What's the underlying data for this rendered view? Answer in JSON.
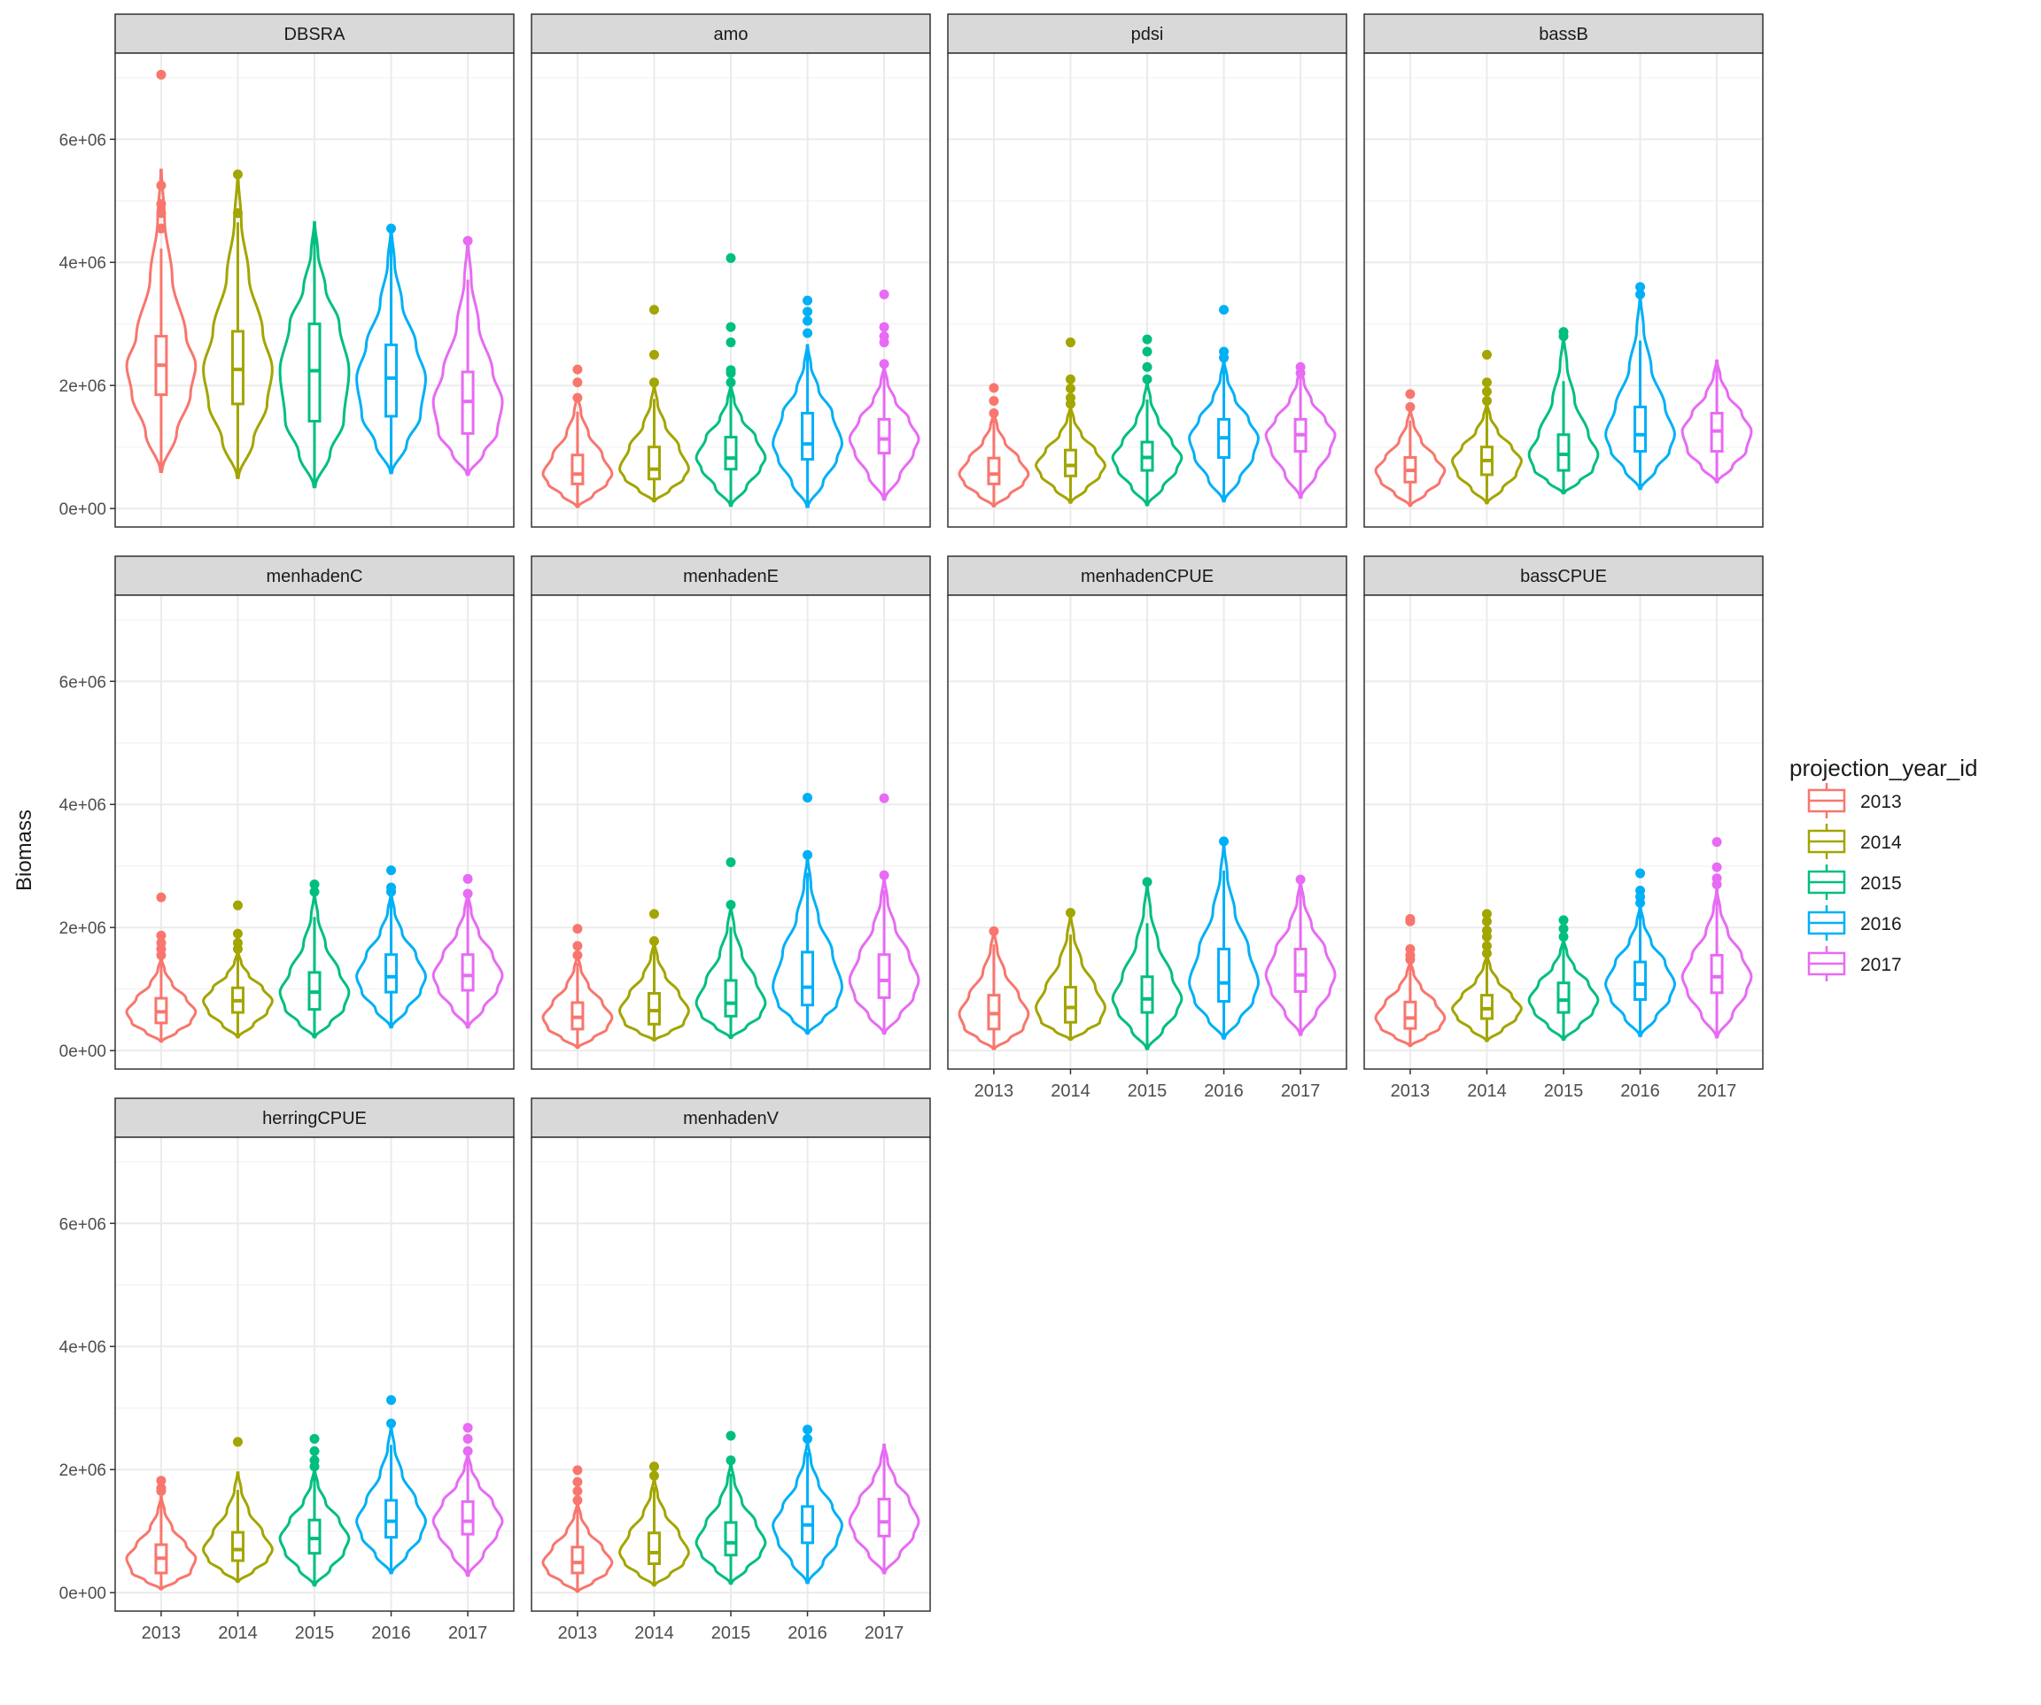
{
  "chart_data": {
    "type": "violin",
    "ylabel": "Biomass",
    "legend": {
      "title": "projection_year_id",
      "position": "right",
      "items": [
        "2013",
        "2014",
        "2015",
        "2016",
        "2017"
      ]
    },
    "categories": [
      "2013",
      "2014",
      "2015",
      "2016",
      "2017"
    ],
    "colors": {
      "2013": "#F8766D",
      "2014": "#A3A500",
      "2015": "#00BF7D",
      "2016": "#00B0F6",
      "2017": "#E76BF3"
    },
    "ylim": [
      -300000,
      7400000
    ],
    "yticks": [
      0,
      2000000,
      4000000,
      6000000
    ],
    "yticklabels": [
      "0e+00",
      "2e+06",
      "4e+06",
      "6e+06"
    ],
    "grid": true,
    "panels": [
      {
        "title": "DBSRA",
        "series": [
          {
            "name": "2013",
            "min": 600000,
            "q1": 1850000,
            "median": 2330000,
            "q3": 2800000,
            "max": 7050000,
            "violin_max": 5500000,
            "outliers": [
              4550000,
              4800000,
              4950000,
              5250000,
              7050000
            ]
          },
          {
            "name": "2014",
            "min": 500000,
            "q1": 1700000,
            "median": 2260000,
            "q3": 2880000,
            "max": 5430000,
            "violin_max": 5430000,
            "outliers": [
              4800000,
              5430000
            ]
          },
          {
            "name": "2015",
            "min": 350000,
            "q1": 1420000,
            "median": 2240000,
            "q3": 3000000,
            "max": 4650000,
            "violin_max": 4650000,
            "outliers": []
          },
          {
            "name": "2016",
            "min": 580000,
            "q1": 1500000,
            "median": 2120000,
            "q3": 2660000,
            "max": 4550000,
            "violin_max": 4550000,
            "outliers": [
              4550000
            ]
          },
          {
            "name": "2017",
            "min": 550000,
            "q1": 1220000,
            "median": 1740000,
            "q3": 2220000,
            "max": 4350000,
            "violin_max": 4350000,
            "outliers": [
              4350000
            ]
          }
        ]
      },
      {
        "title": "amo",
        "series": [
          {
            "name": "2013",
            "min": 30000,
            "q1": 400000,
            "median": 560000,
            "q3": 870000,
            "max": 2260000,
            "violin_max": 1850000,
            "outliers": [
              1800000,
              2050000,
              2260000
            ]
          },
          {
            "name": "2014",
            "min": 120000,
            "q1": 480000,
            "median": 640000,
            "q3": 1000000,
            "max": 3230000,
            "violin_max": 2000000,
            "outliers": [
              2050000,
              2500000,
              3230000
            ]
          },
          {
            "name": "2015",
            "min": 50000,
            "q1": 640000,
            "median": 820000,
            "q3": 1160000,
            "max": 4070000,
            "violin_max": 2000000,
            "outliers": [
              2050000,
              2200000,
              2250000,
              2700000,
              2950000,
              4070000
            ]
          },
          {
            "name": "2016",
            "min": 30000,
            "q1": 800000,
            "median": 1050000,
            "q3": 1550000,
            "max": 3380000,
            "violin_max": 2650000,
            "outliers": [
              2850000,
              3050000,
              3200000,
              3380000
            ]
          },
          {
            "name": "2017",
            "min": 150000,
            "q1": 900000,
            "median": 1130000,
            "q3": 1450000,
            "max": 3480000,
            "violin_max": 2300000,
            "outliers": [
              2350000,
              2700000,
              2800000,
              2950000,
              3480000
            ]
          }
        ]
      },
      {
        "title": "pdsi",
        "series": [
          {
            "name": "2013",
            "min": 40000,
            "q1": 400000,
            "median": 560000,
            "q3": 820000,
            "max": 1960000,
            "violin_max": 1550000,
            "outliers": [
              1550000,
              1750000,
              1960000
            ]
          },
          {
            "name": "2014",
            "min": 100000,
            "q1": 530000,
            "median": 700000,
            "q3": 950000,
            "max": 2700000,
            "violin_max": 1650000,
            "outliers": [
              1700000,
              1800000,
              1950000,
              2100000,
              2700000
            ]
          },
          {
            "name": "2015",
            "min": 60000,
            "q1": 620000,
            "median": 830000,
            "q3": 1080000,
            "max": 2750000,
            "violin_max": 2050000,
            "outliers": [
              2100000,
              2300000,
              2550000,
              2750000
            ]
          },
          {
            "name": "2016",
            "min": 120000,
            "q1": 830000,
            "median": 1150000,
            "q3": 1450000,
            "max": 3230000,
            "violin_max": 2400000,
            "outliers": [
              2450000,
              2550000,
              3230000
            ]
          },
          {
            "name": "2017",
            "min": 180000,
            "q1": 930000,
            "median": 1200000,
            "q3": 1450000,
            "max": 2300000,
            "violin_max": 2300000,
            "outliers": [
              2200000,
              2300000
            ]
          }
        ]
      },
      {
        "title": "bassB",
        "series": [
          {
            "name": "2013",
            "min": 50000,
            "q1": 430000,
            "median": 620000,
            "q3": 830000,
            "max": 1860000,
            "violin_max": 1600000,
            "outliers": [
              1650000,
              1860000
            ]
          },
          {
            "name": "2014",
            "min": 90000,
            "q1": 550000,
            "median": 780000,
            "q3": 1000000,
            "max": 2500000,
            "violin_max": 1700000,
            "outliers": [
              1750000,
              1900000,
              2050000,
              2500000
            ]
          },
          {
            "name": "2015",
            "min": 250000,
            "q1": 620000,
            "median": 880000,
            "q3": 1200000,
            "max": 2870000,
            "violin_max": 2800000,
            "outliers": [
              2800000,
              2870000
            ]
          },
          {
            "name": "2016",
            "min": 320000,
            "q1": 930000,
            "median": 1200000,
            "q3": 1650000,
            "max": 3600000,
            "violin_max": 3450000,
            "outliers": [
              3480000,
              3600000
            ]
          },
          {
            "name": "2017",
            "min": 430000,
            "q1": 930000,
            "median": 1260000,
            "q3": 1550000,
            "max": 2400000,
            "violin_max": 2400000,
            "outliers": []
          }
        ]
      },
      {
        "title": "menhadenC",
        "series": [
          {
            "name": "2013",
            "min": 150000,
            "q1": 450000,
            "median": 630000,
            "q3": 850000,
            "max": 2490000,
            "violin_max": 1500000,
            "outliers": [
              1550000,
              1650000,
              1750000,
              1870000,
              2490000
            ]
          },
          {
            "name": "2014",
            "min": 220000,
            "q1": 620000,
            "median": 810000,
            "q3": 1020000,
            "max": 2360000,
            "violin_max": 1600000,
            "outliers": [
              1650000,
              1750000,
              1900000,
              2360000
            ]
          },
          {
            "name": "2015",
            "min": 220000,
            "q1": 670000,
            "median": 950000,
            "q3": 1270000,
            "max": 2700000,
            "violin_max": 2550000,
            "outliers": [
              2580000,
              2700000
            ]
          },
          {
            "name": "2016",
            "min": 380000,
            "q1": 950000,
            "median": 1200000,
            "q3": 1560000,
            "max": 2930000,
            "violin_max": 2550000,
            "outliers": [
              2580000,
              2650000,
              2930000
            ]
          },
          {
            "name": "2017",
            "min": 380000,
            "q1": 980000,
            "median": 1220000,
            "q3": 1560000,
            "max": 2790000,
            "violin_max": 2550000,
            "outliers": [
              2550000,
              2790000
            ]
          }
        ]
      },
      {
        "title": "menhadenE",
        "series": [
          {
            "name": "2013",
            "min": 50000,
            "q1": 350000,
            "median": 540000,
            "q3": 780000,
            "max": 1980000,
            "violin_max": 1550000,
            "outliers": [
              1550000,
              1700000,
              1980000
            ]
          },
          {
            "name": "2014",
            "min": 170000,
            "q1": 430000,
            "median": 650000,
            "q3": 930000,
            "max": 2220000,
            "violin_max": 1750000,
            "outliers": [
              1780000,
              2220000
            ]
          },
          {
            "name": "2015",
            "min": 210000,
            "q1": 560000,
            "median": 770000,
            "q3": 1140000,
            "max": 3060000,
            "violin_max": 2350000,
            "outliers": [
              2370000,
              3060000
            ]
          },
          {
            "name": "2016",
            "min": 280000,
            "q1": 740000,
            "median": 1030000,
            "q3": 1600000,
            "max": 4110000,
            "violin_max": 3150000,
            "outliers": [
              3180000,
              4110000
            ]
          },
          {
            "name": "2017",
            "min": 280000,
            "q1": 860000,
            "median": 1140000,
            "q3": 1560000,
            "max": 4100000,
            "violin_max": 2800000,
            "outliers": [
              2850000,
              4100000
            ]
          }
        ]
      },
      {
        "title": "menhadenCPUE",
        "series": [
          {
            "name": "2013",
            "min": 30000,
            "q1": 350000,
            "median": 600000,
            "q3": 900000,
            "max": 1940000,
            "violin_max": 1940000,
            "outliers": [
              1940000
            ]
          },
          {
            "name": "2014",
            "min": 180000,
            "q1": 460000,
            "median": 700000,
            "q3": 1030000,
            "max": 2240000,
            "violin_max": 2200000,
            "outliers": [
              2240000
            ]
          },
          {
            "name": "2015",
            "min": 30000,
            "q1": 620000,
            "median": 840000,
            "q3": 1200000,
            "max": 2740000,
            "violin_max": 2700000,
            "outliers": [
              2740000
            ]
          },
          {
            "name": "2016",
            "min": 200000,
            "q1": 800000,
            "median": 1100000,
            "q3": 1650000,
            "max": 3400000,
            "violin_max": 3350000,
            "outliers": [
              3400000
            ]
          },
          {
            "name": "2017",
            "min": 260000,
            "q1": 960000,
            "median": 1230000,
            "q3": 1650000,
            "max": 2780000,
            "violin_max": 2750000,
            "outliers": [
              2780000
            ]
          }
        ]
      },
      {
        "title": "bassCPUE",
        "series": [
          {
            "name": "2013",
            "min": 80000,
            "q1": 360000,
            "median": 530000,
            "q3": 790000,
            "max": 2140000,
            "violin_max": 1450000,
            "outliers": [
              1480000,
              1550000,
              1650000,
              2100000,
              2140000
            ]
          },
          {
            "name": "2014",
            "min": 160000,
            "q1": 520000,
            "median": 680000,
            "q3": 900000,
            "max": 2220000,
            "violin_max": 1550000,
            "outliers": [
              1580000,
              1700000,
              1850000,
              1950000,
              2100000,
              2220000
            ]
          },
          {
            "name": "2015",
            "min": 180000,
            "q1": 620000,
            "median": 820000,
            "q3": 1100000,
            "max": 2120000,
            "violin_max": 1800000,
            "outliers": [
              1850000,
              1980000,
              2120000
            ]
          },
          {
            "name": "2016",
            "min": 240000,
            "q1": 830000,
            "median": 1080000,
            "q3": 1440000,
            "max": 2880000,
            "violin_max": 2350000,
            "outliers": [
              2400000,
              2500000,
              2600000,
              2880000
            ]
          },
          {
            "name": "2017",
            "min": 220000,
            "q1": 940000,
            "median": 1200000,
            "q3": 1550000,
            "max": 3390000,
            "violin_max": 2600000,
            "outliers": [
              2700000,
              2800000,
              2980000,
              3390000
            ]
          }
        ]
      },
      {
        "title": "herringCPUE",
        "series": [
          {
            "name": "2013",
            "min": 60000,
            "q1": 320000,
            "median": 560000,
            "q3": 780000,
            "max": 1820000,
            "violin_max": 1550000,
            "outliers": [
              1650000,
              1700000,
              1820000
            ]
          },
          {
            "name": "2014",
            "min": 180000,
            "q1": 520000,
            "median": 700000,
            "q3": 980000,
            "max": 2450000,
            "violin_max": 1950000,
            "outliers": [
              2450000
            ]
          },
          {
            "name": "2015",
            "min": 120000,
            "q1": 640000,
            "median": 880000,
            "q3": 1180000,
            "max": 2500000,
            "violin_max": 2000000,
            "outliers": [
              2050000,
              2150000,
              2300000,
              2500000
            ]
          },
          {
            "name": "2016",
            "min": 320000,
            "q1": 900000,
            "median": 1160000,
            "q3": 1500000,
            "max": 3130000,
            "violin_max": 2700000,
            "outliers": [
              2750000,
              3130000
            ]
          },
          {
            "name": "2017",
            "min": 280000,
            "q1": 950000,
            "median": 1160000,
            "q3": 1480000,
            "max": 2680000,
            "violin_max": 2250000,
            "outliers": [
              2300000,
              2500000,
              2680000
            ]
          }
        ]
      },
      {
        "title": "menhadenV",
        "series": [
          {
            "name": "2013",
            "min": 20000,
            "q1": 320000,
            "median": 490000,
            "q3": 740000,
            "max": 1990000,
            "violin_max": 1450000,
            "outliers": [
              1500000,
              1650000,
              1800000,
              1990000
            ]
          },
          {
            "name": "2014",
            "min": 120000,
            "q1": 470000,
            "median": 650000,
            "q3": 970000,
            "max": 2050000,
            "violin_max": 1850000,
            "outliers": [
              1900000,
              2050000
            ]
          },
          {
            "name": "2015",
            "min": 150000,
            "q1": 610000,
            "median": 810000,
            "q3": 1140000,
            "max": 2550000,
            "violin_max": 2100000,
            "outliers": [
              2150000,
              2550000
            ]
          },
          {
            "name": "2016",
            "min": 160000,
            "q1": 810000,
            "median": 1100000,
            "q3": 1400000,
            "max": 2650000,
            "violin_max": 2450000,
            "outliers": [
              2500000,
              2650000
            ]
          },
          {
            "name": "2017",
            "min": 320000,
            "q1": 920000,
            "median": 1150000,
            "q3": 1520000,
            "max": 2400000,
            "violin_max": 2400000,
            "outliers": []
          }
        ]
      }
    ]
  }
}
